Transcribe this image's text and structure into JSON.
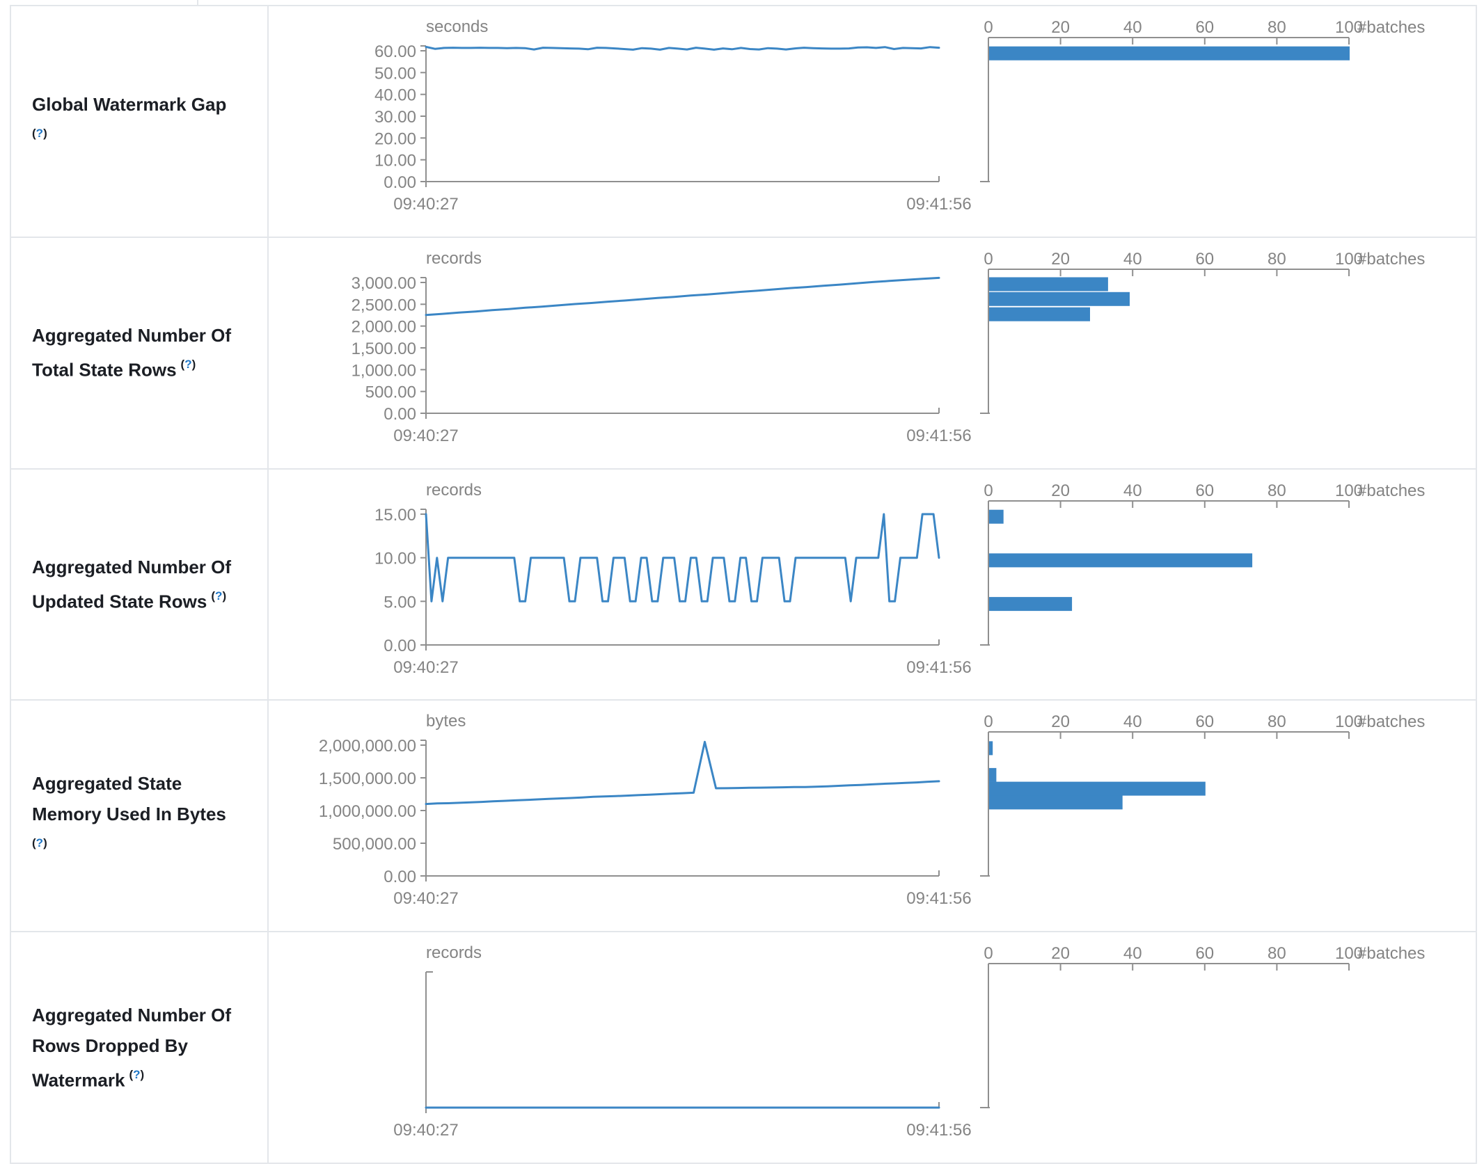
{
  "page": {
    "line_color": "#3b86c5",
    "axis_color": "#8f8f8f",
    "axis_text_color": "#848484",
    "title_color": "#1b1e24",
    "help_link_color": "#2077c7",
    "border_color": "#e3e6ea"
  },
  "x_axis": {
    "start": "09:40:27",
    "end": "09:41:56"
  },
  "histogram_axis": {
    "ticks": [
      "0",
      "20",
      "40",
      "60",
      "80",
      "100"
    ],
    "max": 100,
    "label": "#batches"
  },
  "chart_data": [
    {
      "type": "line+bar",
      "title_lines": [
        "Global Watermark Gap"
      ],
      "help": {
        "open": "(",
        "q": "?",
        "close": ")"
      },
      "help_own_line": true,
      "timeline": {
        "unit": "seconds",
        "yticks": [
          "60.00",
          "50.00",
          "40.00",
          "30.00",
          "20.00",
          "10.00",
          "0.00"
        ],
        "ytop": 60,
        "xlim": [
          "09:40:27",
          "09:41:56"
        ],
        "series": [
          61.8,
          60.9,
          61.3,
          61.4,
          61.3,
          61.3,
          61.4,
          61.3,
          61.3,
          61.2,
          61.3,
          61.2,
          60.6,
          61.4,
          61.3,
          61.2,
          61.1,
          61.0,
          60.7,
          61.4,
          61.3,
          61.1,
          60.8,
          60.5,
          61.2,
          61.0,
          60.5,
          61.3,
          61.0,
          60.6,
          61.4,
          61.0,
          60.5,
          61.1,
          60.7,
          61.3,
          60.8,
          60.6,
          61.2,
          61.0,
          60.6,
          61.1,
          61.4,
          61.2,
          61.1,
          61.0,
          61.0,
          61.1,
          61.5,
          61.6,
          61.3,
          61.7,
          60.8,
          61.3,
          61.2,
          61.1,
          61.7,
          61.4
        ]
      },
      "histogram": {
        "xlabel": "#batches",
        "bars": [
          {
            "bin": 62,
            "count": 100
          }
        ]
      }
    },
    {
      "type": "line+bar",
      "title_lines": [
        "Aggregated Number Of",
        "Total State Rows"
      ],
      "help": {
        "open": "(",
        "q": "?",
        "close": ")"
      },
      "help_own_line": false,
      "timeline": {
        "unit": "records",
        "yticks": [
          "3,000.00",
          "2,500.00",
          "2,000.00",
          "1,500.00",
          "1,000.00",
          "500.00",
          "0.00"
        ],
        "ytop": 3000,
        "xlim": [
          "09:40:27",
          "09:41:56"
        ],
        "series": [
          2255,
          2280,
          2310,
          2335,
          2365,
          2390,
          2420,
          2445,
          2475,
          2505,
          2530,
          2560,
          2585,
          2615,
          2645,
          2670,
          2700,
          2725,
          2755,
          2785,
          2810,
          2840,
          2870,
          2895,
          2925,
          2950,
          2980,
          3010,
          3035,
          3060,
          3085,
          3105
        ]
      },
      "histogram": {
        "xlabel": "#batches",
        "bars": [
          {
            "bin": 3120,
            "count": 33
          },
          {
            "bin": 2780,
            "count": 39
          },
          {
            "bin": 2430,
            "count": 28
          }
        ]
      }
    },
    {
      "type": "line+bar",
      "title_lines": [
        "Aggregated Number Of",
        "Updated State Rows"
      ],
      "help": {
        "open": "(",
        "q": "?",
        "close": ")"
      },
      "help_own_line": false,
      "timeline": {
        "unit": "records",
        "yticks": [
          "15.00",
          "10.00",
          "5.00",
          "0.00"
        ],
        "ytop": 15,
        "xlim": [
          "09:40:27",
          "09:41:56"
        ],
        "series": [
          15,
          5,
          10,
          5,
          10,
          10,
          10,
          10,
          10,
          10,
          10,
          10,
          10,
          10,
          10,
          10,
          10,
          5,
          5,
          10,
          10,
          10,
          10,
          10,
          10,
          10,
          5,
          5,
          10,
          10,
          10,
          10,
          5,
          5,
          10,
          10,
          10,
          5,
          5,
          10,
          10,
          5,
          5,
          10,
          10,
          10,
          5,
          5,
          10,
          10,
          5,
          5,
          10,
          10,
          10,
          5,
          5,
          10,
          10,
          5,
          5,
          10,
          10,
          10,
          10,
          5,
          5,
          10,
          10,
          10,
          10,
          10,
          10,
          10,
          10,
          10,
          10,
          5,
          10,
          10,
          10,
          10,
          10,
          15,
          5,
          5,
          10,
          10,
          10,
          10,
          15,
          15,
          15,
          10
        ]
      },
      "histogram": {
        "xlabel": "#batches",
        "bars": [
          {
            "bin": 15.5,
            "count": 4
          },
          {
            "bin": 10.5,
            "count": 73
          },
          {
            "bin": 5.5,
            "count": 23
          }
        ]
      }
    },
    {
      "type": "line+bar",
      "title_lines": [
        "Aggregated State",
        "Memory Used In Bytes"
      ],
      "help": {
        "open": "(",
        "q": "?",
        "close": ")"
      },
      "help_own_line": true,
      "timeline": {
        "unit": "bytes",
        "yticks": [
          "2,000,000.00",
          "1,500,000.00",
          "1,000,000.00",
          "500,000.00",
          "0.00"
        ],
        "ytop": 2000000,
        "xlim": [
          "09:40:27",
          "09:41:56"
        ],
        "series": [
          1100000,
          1108000,
          1112000,
          1118000,
          1125000,
          1132000,
          1140000,
          1148000,
          1155000,
          1162000,
          1170000,
          1178000,
          1185000,
          1192000,
          1200000,
          1210000,
          1215000,
          1220000,
          1228000,
          1235000,
          1242000,
          1250000,
          1258000,
          1265000,
          1272000,
          2050000,
          1340000,
          1342000,
          1345000,
          1348000,
          1350000,
          1352000,
          1355000,
          1358000,
          1360000,
          1365000,
          1370000,
          1378000,
          1385000,
          1392000,
          1400000,
          1408000,
          1415000,
          1422000,
          1430000,
          1440000,
          1448000
        ]
      },
      "histogram": {
        "xlabel": "#batches",
        "bars": [
          {
            "bin": 2060000,
            "count": 1
          },
          {
            "bin": 1650000,
            "count": 2
          },
          {
            "bin": 1440000,
            "count": 60
          },
          {
            "bin": 1230000,
            "count": 37
          }
        ]
      }
    },
    {
      "type": "line+bar",
      "title_lines": [
        "Aggregated Number Of",
        "Rows Dropped By",
        "Watermark"
      ],
      "help": {
        "open": "(",
        "q": "?",
        "close": ")"
      },
      "help_own_line": false,
      "timeline": {
        "unit": "records",
        "yticks": [],
        "ytop": 1,
        "xlim": [
          "09:40:27",
          "09:41:56"
        ],
        "series": [
          0,
          0
        ]
      },
      "histogram": {
        "xlabel": "#batches",
        "bars": []
      }
    }
  ]
}
